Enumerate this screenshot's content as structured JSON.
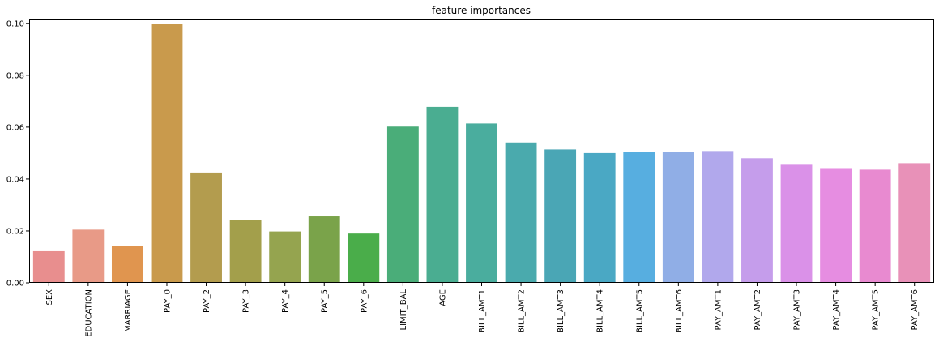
{
  "chart_data": {
    "type": "bar",
    "title": "feature importances",
    "xlabel": "",
    "ylabel": "",
    "ylim": [
      0,
      0.1015
    ],
    "yticks": [
      "0.00",
      "0.02",
      "0.04",
      "0.06",
      "0.08",
      "0.10"
    ],
    "grid": false,
    "categories": [
      "SEX",
      "EDUCATION",
      "MARRIAGE",
      "PAY_0",
      "PAY_2",
      "PAY_3",
      "PAY_4",
      "PAY_5",
      "PAY_6",
      "LIMIT_BAL",
      "AGE",
      "BILL_AMT1",
      "BILL_AMT2",
      "BILL_AMT3",
      "BILL_AMT4",
      "BILL_AMT5",
      "BILL_AMT6",
      "PAY_AMT1",
      "PAY_AMT2",
      "PAY_AMT3",
      "PAY_AMT4",
      "PAY_AMT5",
      "PAY_AMT6"
    ],
    "values": [
      0.0122,
      0.0205,
      0.0142,
      0.0997,
      0.0425,
      0.0243,
      0.0198,
      0.0256,
      0.019,
      0.0602,
      0.0678,
      0.0614,
      0.0541,
      0.0514,
      0.05,
      0.0503,
      0.0505,
      0.0508,
      0.048,
      0.0458,
      0.0442,
      0.0436,
      0.0461
    ],
    "colors": [
      "#e88e8e",
      "#e89a87",
      "#e0954f",
      "#c99a4c",
      "#b39c4e",
      "#a39f4b",
      "#95a44f",
      "#7aa34a",
      "#4aad4a",
      "#4aad79",
      "#4aad91",
      "#4aad9e",
      "#4aaaad",
      "#4aa6b5",
      "#4aa8c4",
      "#57aee0",
      "#90aee6",
      "#b1a8ec",
      "#c59deb",
      "#da91e8",
      "#e68de1",
      "#e88ad0",
      "#e891b8"
    ]
  }
}
